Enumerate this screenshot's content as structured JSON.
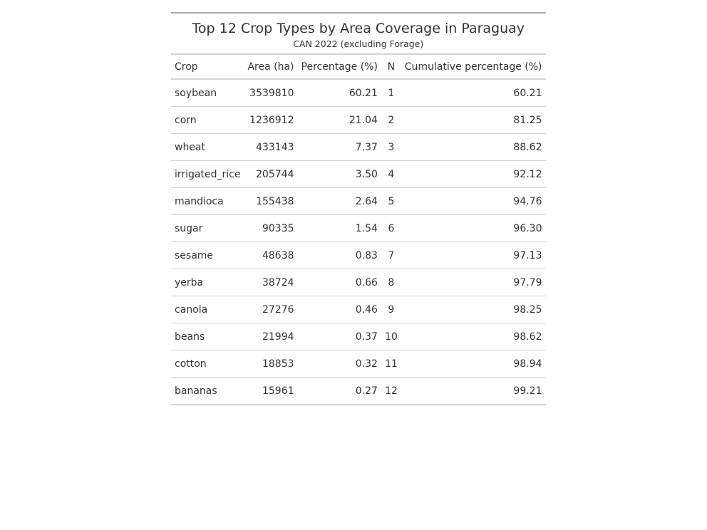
{
  "chart_data": {
    "type": "table",
    "title": "Top 12 Crop Types by Area Coverage in Paraguay",
    "subtitle": "CAN 2022 (excluding Forage)",
    "columns": [
      "Crop",
      "Area (ha)",
      "Percentage (%)",
      "N",
      "Cumulative percentage (%)"
    ],
    "rows": [
      [
        "soybean",
        "3539810",
        "60.21",
        "1",
        "60.21"
      ],
      [
        "corn",
        "1236912",
        "21.04",
        "2",
        "81.25"
      ],
      [
        "wheat",
        "433143",
        "7.37",
        "3",
        "88.62"
      ],
      [
        "irrigated_rice",
        "205744",
        "3.50",
        "4",
        "92.12"
      ],
      [
        "mandioca",
        "155438",
        "2.64",
        "5",
        "94.76"
      ],
      [
        "sugar",
        "90335",
        "1.54",
        "6",
        "96.30"
      ],
      [
        "sesame",
        "48638",
        "0.83",
        "7",
        "97.13"
      ],
      [
        "yerba",
        "38724",
        "0.66",
        "8",
        "97.79"
      ],
      [
        "canola",
        "27276",
        "0.46",
        "9",
        "98.25"
      ],
      [
        "beans",
        "21994",
        "0.37",
        "10",
        "98.62"
      ],
      [
        "cotton",
        "18853",
        "0.32",
        "11",
        "98.94"
      ],
      [
        "bananas",
        "15961",
        "0.27",
        "12",
        "99.21"
      ]
    ]
  }
}
